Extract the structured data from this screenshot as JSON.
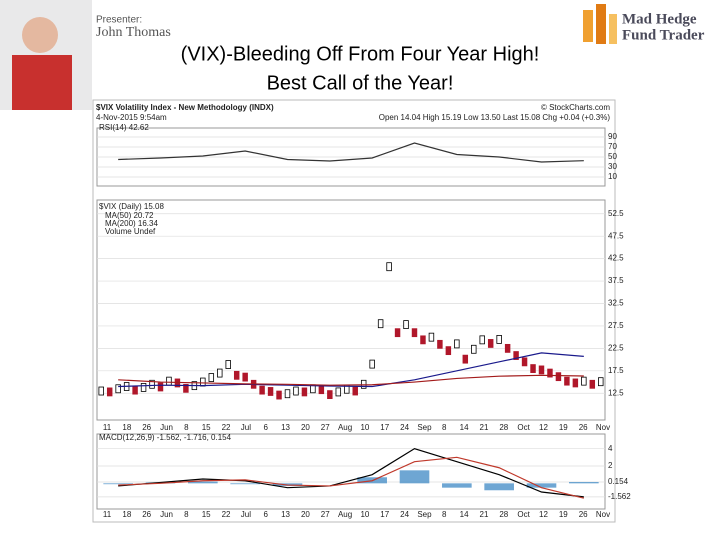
{
  "header": {
    "presenter_label": "Presenter:",
    "presenter_name": "John Thomas",
    "logo_line1": "Mad Hedge",
    "logo_line2": "Fund Trader"
  },
  "title_lines": [
    "(VIX)-Bleeding Off From Four Year High!",
    "Best Call of the Year!"
  ],
  "chart_data": {
    "type": "stock",
    "symbol_title": "$VIX Volatility Index - New Methodology (INDX)",
    "timestamp": "4-Nov-2015 9:54am",
    "quote": "Open 14.04 High 15.19 Low 13.50 Last 15.08 Chg +0.04 (+0.3%)",
    "source": "© StockCharts.com",
    "x_labels": [
      "11",
      "18",
      "26",
      "Jun",
      "8",
      "15",
      "22",
      "Jul",
      "6",
      "13",
      "20",
      "27",
      "Aug",
      "10",
      "17",
      "24",
      "Sep",
      "8",
      "14",
      "21",
      "28",
      "Oct",
      "12",
      "19",
      "26",
      "Nov"
    ],
    "rsi": {
      "name": "RSI(14) 42.62",
      "ylim": [
        0,
        100
      ],
      "yticks": [
        10,
        30,
        50,
        70,
        90
      ],
      "color": "#333333",
      "values": [
        45,
        48,
        52,
        62,
        45,
        42,
        48,
        78,
        55,
        50,
        40,
        42.62
      ]
    },
    "price": {
      "name": "$VIX (Daily) 15.08",
      "ylim": [
        11,
        54
      ],
      "yticks": [
        12.5,
        17.5,
        22.5,
        27.5,
        32.5,
        37.5,
        42.5,
        47.5,
        52.5
      ],
      "values": [
        13,
        12.8,
        13.5,
        14,
        13.2,
        13.8,
        14.5,
        13.9,
        15.2,
        14.8,
        13.6,
        14.2,
        15,
        16,
        17,
        18.9,
        16.5,
        16.1,
        14.5,
        13.2,
        12.9,
        12.1,
        12.4,
        13,
        12.8,
        13.5,
        13.3,
        12.2,
        12.8,
        13.4,
        13,
        14.5,
        19,
        28,
        40.7,
        26,
        27.8,
        26,
        24.4,
        25,
        23.4,
        22,
        23.5,
        20.1,
        22.3,
        24.4,
        23.6,
        24.5,
        22.5,
        20.9,
        19.5,
        18,
        17.7,
        17,
        16.2,
        15.2,
        14.8,
        15.2,
        14.5,
        15.08
      ],
      "up_color": "#000000",
      "down_color": "#b0172a"
    },
    "series": [
      {
        "name": "MA(50) 20.72",
        "color": "#1a1a8c",
        "values": [
          14,
          14.3,
          14.2,
          14.5,
          14.3,
          14.1,
          14,
          15.5,
          17.5,
          19.5,
          21.5,
          20.72
        ]
      },
      {
        "name": "MA(200) 16.34",
        "color": "#a31b1b",
        "values": [
          15.5,
          15,
          14.8,
          14.6,
          14.5,
          14.3,
          14.4,
          15,
          15.8,
          16.3,
          16.5,
          16.34
        ]
      }
    ],
    "volume_label": "Volume Undef",
    "macd": {
      "name": "MACD(12,26,9) -1.562, -1.716, 0.154",
      "ylim": [
        -2.5,
        5
      ],
      "yticks": [
        -1.562,
        0.154,
        2,
        4
      ],
      "macd_color": "#000000",
      "signal_color": "#c0392b",
      "hist_color": "#4a90c8",
      "macd_values": [
        -0.3,
        0.1,
        0.5,
        0.3,
        -0.5,
        -0.3,
        1,
        4,
        2.5,
        1,
        -1,
        -1.562
      ],
      "signal_values": [
        -0.2,
        0,
        0.3,
        0.4,
        -0.2,
        -0.3,
        0.3,
        2.5,
        3,
        1.8,
        -0.5,
        -1.716
      ]
    }
  }
}
